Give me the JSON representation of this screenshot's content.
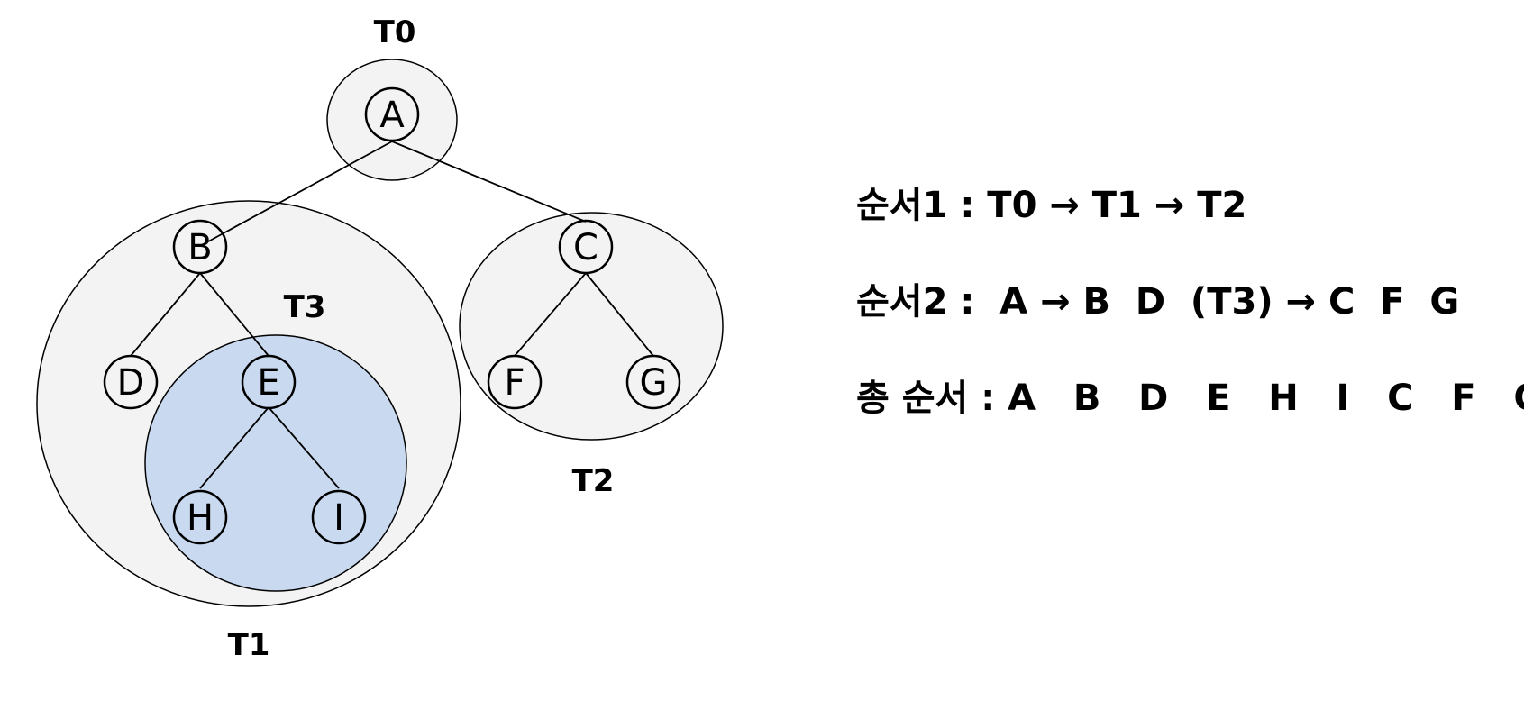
{
  "colors": {
    "subtree_fill": "#f3f3f3",
    "highlight_fill": "#c9d9ef",
    "stroke": "#000000",
    "background": "#ffffff"
  },
  "subtrees": {
    "t0": "T0",
    "t1": "T1",
    "t2": "T2",
    "t3": "T3"
  },
  "nodes": {
    "a": "A",
    "b": "B",
    "c": "C",
    "d": "D",
    "e": "E",
    "f": "F",
    "g": "G",
    "h": "H",
    "i": "I"
  },
  "edges": [
    [
      "A",
      "B"
    ],
    [
      "A",
      "C"
    ],
    [
      "B",
      "D"
    ],
    [
      "B",
      "E"
    ],
    [
      "E",
      "H"
    ],
    [
      "E",
      "I"
    ],
    [
      "C",
      "F"
    ],
    [
      "C",
      "G"
    ]
  ],
  "orders": {
    "order1": "순서1 : T0 → T1 → T2",
    "order2": "순서2 :  A → B  D  (T3) → C  F  G",
    "total": "총 순서 : A   B   D   E   H   I   C   F   G"
  }
}
